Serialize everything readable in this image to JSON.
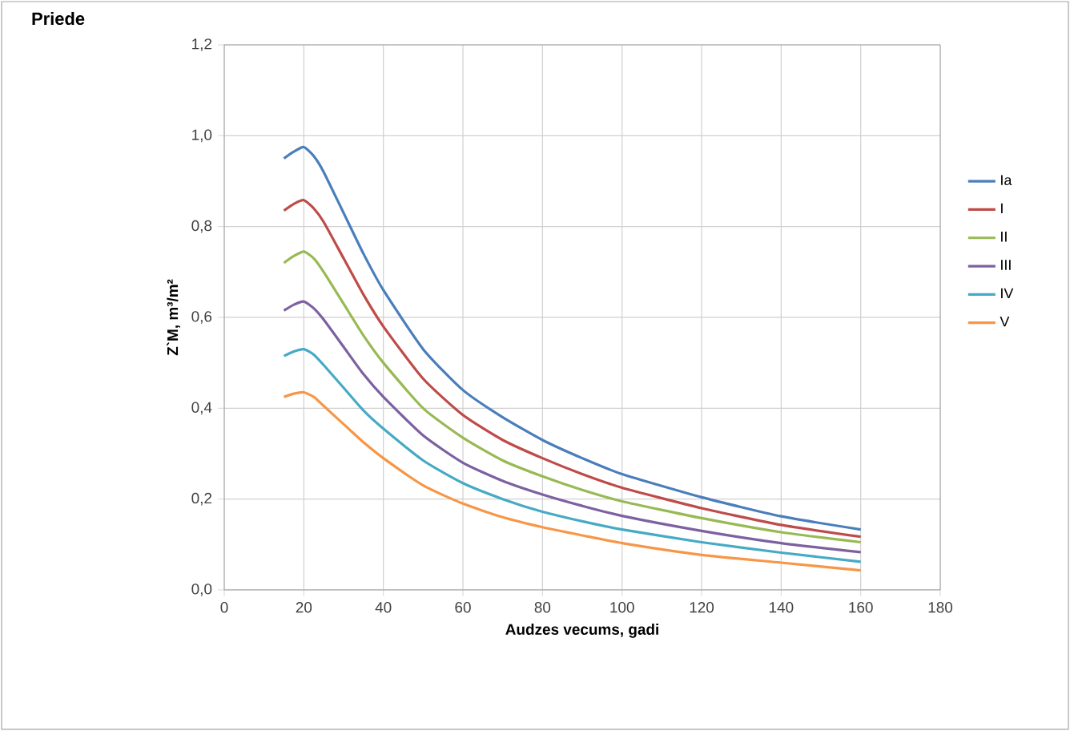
{
  "chart_data": {
    "type": "line",
    "title": "Priede",
    "xlabel": "Audzes vecums, gadi",
    "ylabel": "Z`M, m³/m²",
    "x": [
      15,
      17.5,
      20,
      22.5,
      25,
      30,
      35,
      40,
      50,
      60,
      70,
      80,
      90,
      100,
      120,
      140,
      160
    ],
    "series": [
      {
        "name": "Ia",
        "color": "#4a7ebb",
        "values": [
          0.95,
          0.965,
          0.975,
          0.955,
          0.92,
          0.83,
          0.74,
          0.66,
          0.53,
          0.44,
          0.38,
          0.33,
          0.29,
          0.255,
          0.204,
          0.162,
          0.133
        ]
      },
      {
        "name": "I",
        "color": "#be4b48",
        "values": [
          0.835,
          0.85,
          0.858,
          0.84,
          0.81,
          0.73,
          0.65,
          0.58,
          0.465,
          0.385,
          0.33,
          0.29,
          0.255,
          0.225,
          0.18,
          0.143,
          0.117
        ]
      },
      {
        "name": "II",
        "color": "#98b954",
        "values": [
          0.72,
          0.735,
          0.745,
          0.73,
          0.7,
          0.63,
          0.56,
          0.5,
          0.4,
          0.335,
          0.285,
          0.25,
          0.22,
          0.195,
          0.158,
          0.127,
          0.105
        ]
      },
      {
        "name": "III",
        "color": "#7d60a0",
        "values": [
          0.615,
          0.628,
          0.635,
          0.62,
          0.595,
          0.535,
          0.475,
          0.425,
          0.34,
          0.28,
          0.24,
          0.21,
          0.185,
          0.163,
          0.13,
          0.103,
          0.083
        ]
      },
      {
        "name": "IV",
        "color": "#46aac5",
        "values": [
          0.515,
          0.525,
          0.53,
          0.518,
          0.495,
          0.445,
          0.395,
          0.355,
          0.285,
          0.235,
          0.2,
          0.172,
          0.151,
          0.133,
          0.105,
          0.082,
          0.062
        ]
      },
      {
        "name": "V",
        "color": "#f79646",
        "values": [
          0.425,
          0.432,
          0.435,
          0.425,
          0.405,
          0.365,
          0.325,
          0.29,
          0.23,
          0.19,
          0.16,
          0.138,
          0.12,
          0.103,
          0.077,
          0.06,
          0.043
        ]
      }
    ],
    "xlim": [
      0,
      180
    ],
    "xticks": [
      0,
      20,
      40,
      60,
      80,
      100,
      120,
      140,
      160,
      180
    ],
    "ylim": [
      0,
      1.2
    ],
    "yticks": [
      {
        "value": 0,
        "label": "0,0"
      },
      {
        "value": 0.2,
        "label": "0,2"
      },
      {
        "value": 0.4,
        "label": "0,4"
      },
      {
        "value": 0.6,
        "label": "0,6"
      },
      {
        "value": 0.8,
        "label": "0,8"
      },
      {
        "value": 1.0,
        "label": "1,0"
      },
      {
        "value": 1.2,
        "label": "1,2"
      }
    ],
    "grid": true,
    "legend": "right",
    "marker": "none",
    "line_style": "solid"
  }
}
